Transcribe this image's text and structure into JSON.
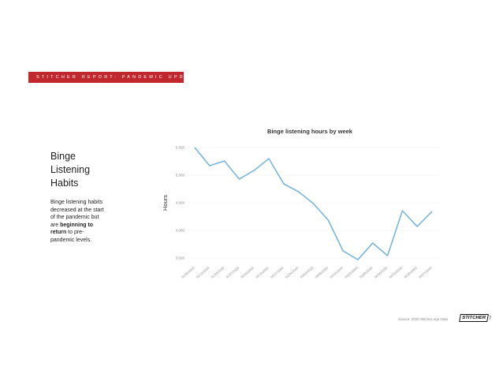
{
  "banner": "STITCHER REPORT: PANDEMIC UPDATE",
  "heading": "Binge Listening Habits",
  "body": [
    "Binge listening habits decreased at the start of the pandemic but are ",
    "beginning to return",
    " to pre-pandemic levels."
  ],
  "source": "Source: 2020 Stitcher App Data",
  "logo": "STITCHER",
  "page_number": "7",
  "chart_data": {
    "type": "line",
    "title": "Binge listening hours by week",
    "y_label": "Hours",
    "categories": [
      "01/06/2020",
      "01/13/2020",
      "01/20/2020",
      "01/27/2020",
      "02/03/2020",
      "02/10/2020",
      "02/17/2020",
      "02/24/2020",
      "03/02/2020",
      "03/09/2020",
      "03/16/2020",
      "03/23/2020",
      "03/30/2020",
      "04/06/2020",
      "04/13/2020",
      "04/20/2020",
      "04/27/2020"
    ],
    "values": [
      5500,
      5171,
      5257,
      4929,
      5086,
      5300,
      4843,
      4700,
      4486,
      4186,
      3629,
      3471,
      3771,
      3543,
      4357,
      4071,
      4343
    ],
    "color": "#7ab6dc",
    "ylim": [
      3400,
      5600
    ],
    "yticks": [
      {
        "value": 3500,
        "label": "3,500"
      },
      {
        "value": 4000,
        "label": "4,000"
      },
      {
        "value": 4500,
        "label": "4,500"
      },
      {
        "value": 5000,
        "label": "5,000"
      },
      {
        "value": 5500,
        "label": "5,500"
      }
    ],
    "grid": true
  }
}
